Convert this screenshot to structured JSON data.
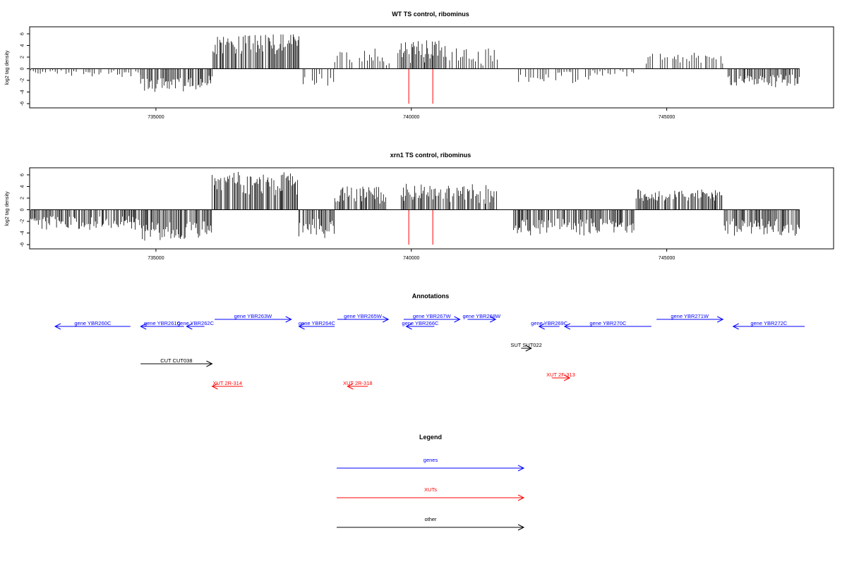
{
  "colors": {
    "gene": "#0000ff",
    "xut": "#ff0000",
    "other": "#000000",
    "signal": "#000000",
    "axis": "#000000"
  },
  "chart_data": [
    {
      "type": "bar",
      "title": "WT TS control, ribominus",
      "ylabel": "log2 tag density",
      "xlim": [
        732500,
        747700
      ],
      "ylim": [
        -6,
        6
      ],
      "xticks": [
        735000,
        740000,
        745000
      ],
      "yticks": [
        6,
        4,
        2,
        0,
        -2,
        -4,
        -6
      ],
      "grid": false,
      "highlight_lines": [
        {
          "x": 739950,
          "y": -6
        },
        {
          "x": 740420,
          "y": -6
        }
      ],
      "segments": [
        {
          "start": 732550,
          "end": 733100,
          "lo": -1,
          "hi": -0.2
        },
        {
          "start": 733100,
          "end": 734700,
          "lo": -1.5,
          "hi": -0.3
        },
        {
          "start": 734700,
          "end": 735900,
          "lo": -4,
          "hi": -1.5
        },
        {
          "start": 735900,
          "end": 736100,
          "lo": -3.5,
          "hi": -1.2
        },
        {
          "start": 736100,
          "end": 737800,
          "lo": 2.5,
          "hi": 6
        },
        {
          "start": 737800,
          "end": 738500,
          "lo": -3,
          "hi": -0.8
        },
        {
          "start": 738500,
          "end": 739800,
          "lo": 0.5,
          "hi": 3.5
        },
        {
          "start": 739800,
          "end": 740700,
          "lo": 1,
          "hi": 5
        },
        {
          "start": 740700,
          "end": 741700,
          "lo": 0.5,
          "hi": 3.5
        },
        {
          "start": 742100,
          "end": 743500,
          "lo": -2.5,
          "hi": -0.5
        },
        {
          "start": 743500,
          "end": 744400,
          "lo": -1.5,
          "hi": -0.2
        },
        {
          "start": 744600,
          "end": 746100,
          "lo": 0.5,
          "hi": 2.8
        },
        {
          "start": 746200,
          "end": 747600,
          "lo": -3.2,
          "hi": -1
        }
      ]
    },
    {
      "type": "bar",
      "title": "xrn1 TS control, ribominus",
      "ylabel": "log2 tag density",
      "xlim": [
        732500,
        747700
      ],
      "ylim": [
        -6,
        6
      ],
      "xticks": [
        735000,
        740000,
        745000
      ],
      "yticks": [
        6,
        4,
        2,
        0,
        -2,
        -4,
        -6
      ],
      "grid": false,
      "highlight_lines": [
        {
          "x": 739950,
          "y": -6
        },
        {
          "x": 740420,
          "y": -6
        }
      ],
      "segments": [
        {
          "start": 732550,
          "end": 734700,
          "lo": -3.5,
          "hi": -1
        },
        {
          "start": 734700,
          "end": 735700,
          "lo": -5.5,
          "hi": -2
        },
        {
          "start": 735700,
          "end": 736100,
          "lo": -5,
          "hi": -2
        },
        {
          "start": 736100,
          "end": 737800,
          "lo": 2.5,
          "hi": 6.5
        },
        {
          "start": 737800,
          "end": 738500,
          "lo": -5,
          "hi": -1.5
        },
        {
          "start": 738500,
          "end": 739500,
          "lo": 1,
          "hi": 4
        },
        {
          "start": 739800,
          "end": 740700,
          "lo": 1.5,
          "hi": 4.5
        },
        {
          "start": 740700,
          "end": 741700,
          "lo": 1,
          "hi": 4.5
        },
        {
          "start": 742000,
          "end": 743000,
          "lo": -4.5,
          "hi": -1.5
        },
        {
          "start": 743000,
          "end": 744400,
          "lo": -4.5,
          "hi": -1.5
        },
        {
          "start": 744400,
          "end": 746100,
          "lo": 1.5,
          "hi": 3.5
        },
        {
          "start": 746100,
          "end": 747600,
          "lo": -4.5,
          "hi": -1.5
        }
      ]
    }
  ],
  "annotations": {
    "title": "Annotations",
    "items": [
      {
        "label": "gene YBR260C",
        "kind": "gene",
        "start": 732500,
        "end": 734500,
        "dir": "left",
        "row": 1
      },
      {
        "label": "gene YBR261C",
        "kind": "gene",
        "start": 734700,
        "end": 735550,
        "dir": "left",
        "row": 1
      },
      {
        "label": "gene YBR262C",
        "kind": "gene",
        "start": 735600,
        "end": 735950,
        "dir": "left",
        "row": 1
      },
      {
        "label": "gene YBR263W",
        "kind": "gene",
        "start": 736150,
        "end": 737650,
        "dir": "right",
        "row": 0
      },
      {
        "label": "gene YBR264C",
        "kind": "gene",
        "start": 737800,
        "end": 738500,
        "dir": "left",
        "row": 1
      },
      {
        "label": "gene YBR265W",
        "kind": "gene",
        "start": 738550,
        "end": 739550,
        "dir": "right",
        "row": 0
      },
      {
        "label": "gene YBR266C",
        "kind": "gene",
        "start": 739900,
        "end": 740450,
        "dir": "left",
        "row": 1
      },
      {
        "label": "gene YBR267W",
        "kind": "gene",
        "start": 739850,
        "end": 740950,
        "dir": "right",
        "row": 0
      },
      {
        "label": "gene YBR268W",
        "kind": "gene",
        "start": 741100,
        "end": 741650,
        "dir": "right",
        "row": 0
      },
      {
        "label": "gene YBR269C",
        "kind": "gene",
        "start": 742500,
        "end": 742900,
        "dir": "left",
        "row": 1
      },
      {
        "label": "gene YBR270C",
        "kind": "gene",
        "start": 743000,
        "end": 744700,
        "dir": "left",
        "row": 1
      },
      {
        "label": "gene YBR271W",
        "kind": "gene",
        "start": 744800,
        "end": 746100,
        "dir": "right",
        "row": 0
      },
      {
        "label": "gene YBR272C",
        "kind": "gene",
        "start": 746300,
        "end": 747700,
        "dir": "left",
        "row": 1
      },
      {
        "label": "SUT SUT022",
        "kind": "other",
        "start": 742150,
        "end": 742350,
        "dir": "right",
        "row": 2
      },
      {
        "label": "CUT CUT038",
        "kind": "other",
        "start": 734700,
        "end": 736100,
        "dir": "right",
        "row": 3
      },
      {
        "label": "XUT 2F-313",
        "kind": "xut",
        "start": 742750,
        "end": 743100,
        "dir": "right",
        "row": 4
      },
      {
        "label": "XUT 2R-314",
        "kind": "xut",
        "start": 736100,
        "end": 736700,
        "dir": "left",
        "row": 5
      },
      {
        "label": "XUT 2R-318",
        "kind": "xut",
        "start": 738750,
        "end": 739150,
        "dir": "left",
        "row": 5
      }
    ]
  },
  "legend": {
    "title": "Legend",
    "entries": [
      {
        "label": "genes",
        "kind": "gene"
      },
      {
        "label": "XUTs",
        "kind": "xut"
      },
      {
        "label": "other",
        "kind": "other"
      }
    ]
  }
}
